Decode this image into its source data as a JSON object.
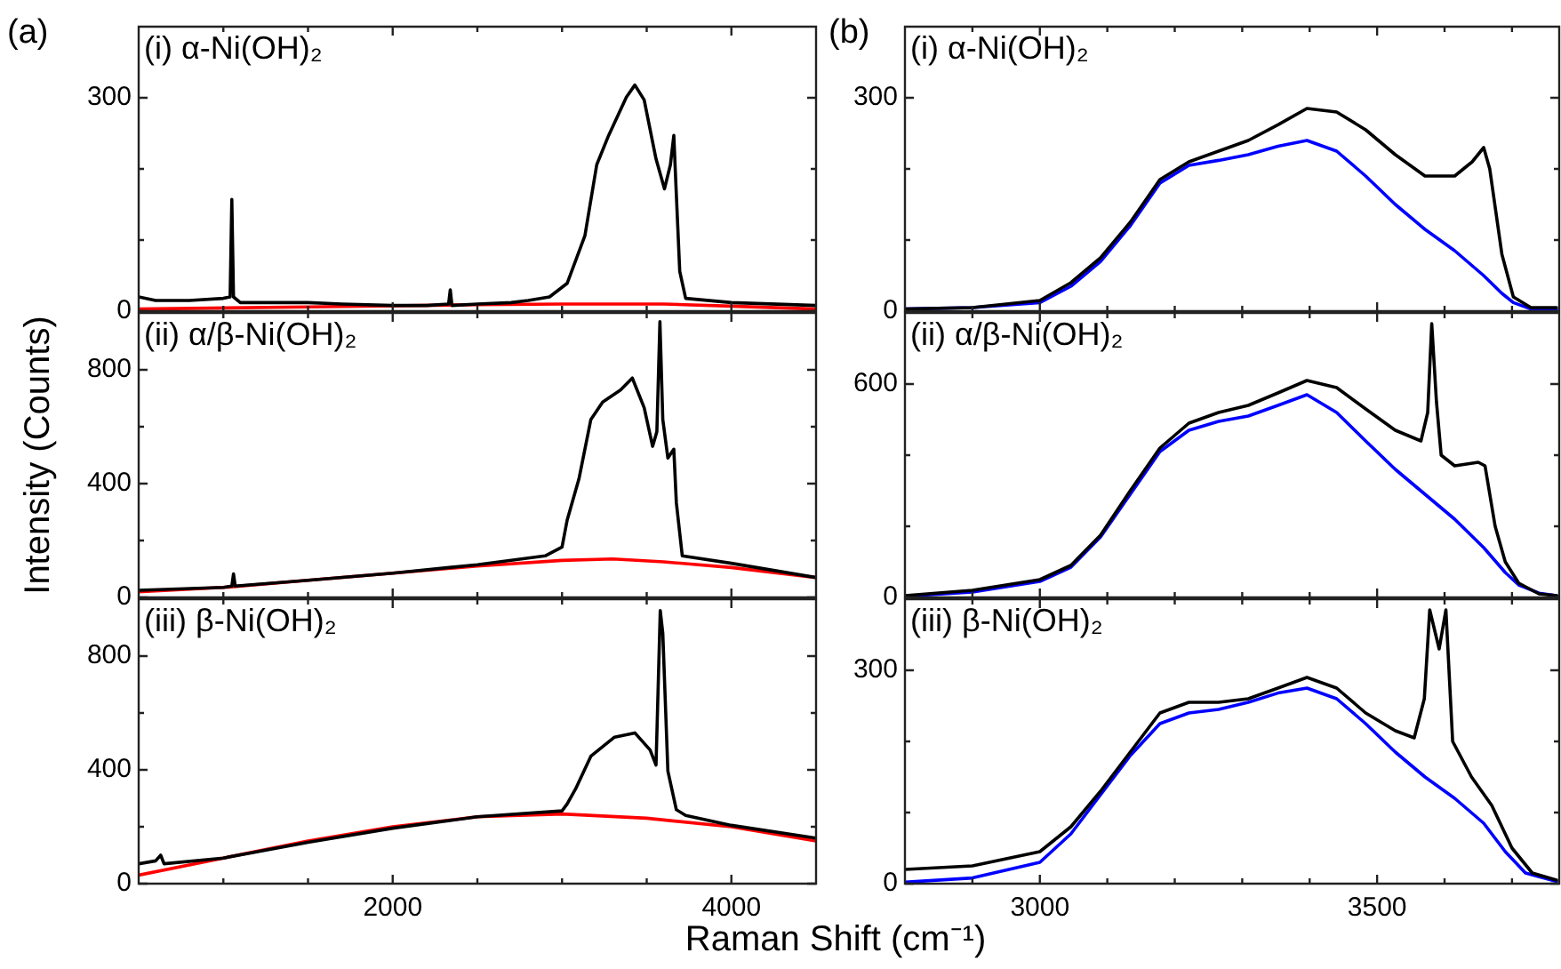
{
  "chart_data": [
    {
      "type": "line",
      "title": "(i) α-Ni(OH)₂",
      "annotations": [
        "(a)"
      ],
      "tick_labels": "y",
      "xlim": [
        500,
        4500
      ],
      "xticks": [
        {
          "value": 1000,
          "label": null
        },
        {
          "value": 1500,
          "label": null
        },
        2000,
        {
          "value": 2500,
          "label": null
        },
        {
          "value": 3000,
          "label": null
        },
        {
          "value": 3500,
          "label": null
        },
        4000
      ],
      "ylim": [
        0,
        400
      ],
      "yticks": [
        0,
        {
          "value": 100,
          "label": null
        },
        {
          "value": 200,
          "label": null
        },
        300
      ],
      "series": [
        {
          "color": "#000000",
          "x": [
            500,
            600,
            800,
            1000,
            1040,
            1050,
            1060,
            1100,
            1300,
            1500,
            1700,
            2000,
            2200,
            2330,
            2340,
            2350,
            2500,
            2700,
            2800,
            2926,
            3030,
            3135,
            3205,
            3275,
            3380,
            3430,
            3485,
            3555,
            3605,
            3640,
            3660,
            3675,
            3695,
            3730,
            4000,
            4500
          ],
          "values": [
            20,
            15,
            15,
            18,
            20,
            157,
            20,
            12,
            12,
            12,
            10,
            8,
            8,
            10,
            30,
            8,
            10,
            12,
            15,
            20,
            39,
            106,
            206,
            247,
            301,
            318,
            297,
            214,
            172,
            206,
            247,
            164,
            56,
            18,
            12,
            8
          ]
        },
        {
          "color": "#ff0000",
          "x": [
            500,
            1500,
            2500,
            3000,
            3600,
            4000,
            4500
          ],
          "values": [
            3,
            6,
            9,
            10,
            10,
            7,
            3
          ]
        }
      ]
    },
    {
      "type": "line",
      "title": "(ii) α/β-Ni(OH)₂",
      "ylabel": "Intensity (Counts)",
      "tick_labels": "y",
      "xlim": [
        500,
        4500
      ],
      "xticks": [
        {
          "value": 1000,
          "label": null
        },
        {
          "value": 1500,
          "label": null
        },
        2000,
        {
          "value": 2500,
          "label": null
        },
        {
          "value": 3000,
          "label": null
        },
        {
          "value": 3500,
          "label": null
        },
        4000
      ],
      "ylim": [
        0,
        1000
      ],
      "yticks": [
        0,
        {
          "value": 200,
          "label": null
        },
        400,
        {
          "value": 600,
          "label": null
        },
        800
      ],
      "series": [
        {
          "color": "#000000",
          "x": [
            500,
            1000,
            1050,
            1060,
            1070,
            1500,
            2000,
            2500,
            2900,
            3000,
            3030,
            3100,
            3170,
            3240,
            3345,
            3415,
            3485,
            3535,
            3560,
            3578,
            3595,
            3625,
            3660,
            3675,
            3710,
            4000,
            4500
          ],
          "values": [
            25,
            35,
            40,
            83,
            40,
            60,
            85,
            115,
            146,
            177,
            271,
            417,
            625,
            687,
            729,
            771,
            667,
            531,
            583,
            969,
            625,
            490,
            521,
            333,
            146,
            120,
            70
          ]
        },
        {
          "color": "#ff0000",
          "x": [
            500,
            1000,
            1500,
            2000,
            2500,
            3000,
            3300,
            3600,
            4000,
            4500
          ],
          "values": [
            20,
            35,
            60,
            85,
            110,
            130,
            135,
            125,
            105,
            70
          ]
        }
      ]
    },
    {
      "type": "line",
      "title": "(iii) β-Ni(OH)₂",
      "xlabel": "Raman Shift (cm⁻¹)",
      "xlim": [
        500,
        4500
      ],
      "xticks": [
        {
          "value": 1000,
          "label": null
        },
        {
          "value": 1500,
          "label": null
        },
        2000,
        {
          "value": 2500,
          "label": null
        },
        {
          "value": 3000,
          "label": null
        },
        {
          "value": 3500,
          "label": null
        },
        4000
      ],
      "ylim": [
        0,
        1000
      ],
      "yticks": [
        0,
        {
          "value": 200,
          "label": null
        },
        400,
        {
          "value": 600,
          "label": null
        },
        800
      ],
      "series": [
        {
          "color": "#000000",
          "x": [
            500,
            600,
            630,
            650,
            1000,
            1500,
            2000,
            2500,
            3000,
            3030,
            3080,
            3170,
            3310,
            3430,
            3520,
            3555,
            3580,
            3595,
            3625,
            3675,
            3730,
            4000,
            4500
          ],
          "values": [
            70,
            80,
            100,
            70,
            90,
            145,
            195,
            235,
            256,
            280,
            333,
            448,
            515,
            530,
            470,
            417,
            960,
            880,
            396,
            260,
            240,
            205,
            160
          ]
        },
        {
          "color": "#ff0000",
          "x": [
            500,
            1000,
            1500,
            2000,
            2500,
            3000,
            3500,
            4000,
            4500
          ],
          "values": [
            30,
            90,
            150,
            200,
            235,
            245,
            230,
            200,
            150
          ]
        }
      ]
    },
    {
      "type": "line",
      "title": "(i) α-Ni(OH)₂",
      "annotations": [
        "(b)"
      ],
      "tick_labels": "y",
      "xlim": [
        2800,
        3770
      ],
      "xticks": [
        {
          "value": 2900,
          "label": null
        },
        3000,
        {
          "value": 3100,
          "label": null
        },
        {
          "value": 3200,
          "label": null
        },
        {
          "value": 3300,
          "label": null
        },
        {
          "value": 3400,
          "label": null
        },
        3500,
        {
          "value": 3600,
          "label": null
        },
        {
          "value": 3700,
          "label": null
        }
      ],
      "ylim": [
        0,
        400
      ],
      "yticks": [
        0,
        {
          "value": 100,
          "label": null
        },
        {
          "value": 200,
          "label": null
        },
        300
      ],
      "series": [
        {
          "color": "#000000",
          "x": [
            2800,
            2900,
            3000,
            3046,
            3090,
            3134,
            3178,
            3221,
            3265,
            3309,
            3353,
            3396,
            3440,
            3483,
            3527,
            3571,
            3615,
            3641,
            3658,
            3667,
            3685,
            3702,
            3728,
            3766
          ],
          "values": [
            3,
            5,
            15,
            40,
            75,
            125,
            185,
            210,
            225,
            240,
            262,
            285,
            280,
            255,
            220,
            190,
            190,
            210,
            230,
            200,
            80,
            20,
            5,
            5
          ]
        },
        {
          "color": "#0000ff",
          "x": [
            2800,
            2900,
            3000,
            3046,
            3090,
            3134,
            3178,
            3221,
            3265,
            3309,
            3353,
            3396,
            3440,
            3483,
            3527,
            3571,
            3615,
            3658,
            3685,
            3702,
            3728,
            3766
          ],
          "values": [
            3,
            5,
            12,
            35,
            70,
            120,
            180,
            205,
            212,
            220,
            232,
            240,
            225,
            190,
            150,
            115,
            85,
            50,
            25,
            12,
            3,
            2
          ]
        }
      ]
    },
    {
      "type": "line",
      "title": "(ii) α/β-Ni(OH)₂",
      "tick_labels": "y",
      "xlim": [
        2800,
        3770
      ],
      "xticks": [
        {
          "value": 2900,
          "label": null
        },
        3000,
        {
          "value": 3100,
          "label": null
        },
        {
          "value": 3200,
          "label": null
        },
        {
          "value": 3300,
          "label": null
        },
        {
          "value": 3400,
          "label": null
        },
        3500,
        {
          "value": 3600,
          "label": null
        },
        {
          "value": 3700,
          "label": null
        }
      ],
      "ylim": [
        0,
        800
      ],
      "yticks": [
        0,
        {
          "value": 200,
          "label": null
        },
        {
          "value": 400,
          "label": null
        },
        600
      ],
      "series": [
        {
          "color": "#000000",
          "x": [
            2800,
            2900,
            3000,
            3046,
            3090,
            3134,
            3178,
            3221,
            3265,
            3309,
            3353,
            3396,
            3440,
            3483,
            3527,
            3565,
            3575,
            3581,
            3588,
            3595,
            3615,
            3650,
            3660,
            3675,
            3690,
            3710,
            3740,
            3766
          ],
          "values": [
            5,
            20,
            50,
            90,
            175,
            300,
            420,
            490,
            520,
            540,
            575,
            610,
            590,
            530,
            470,
            440,
            520,
            770,
            550,
            400,
            370,
            380,
            370,
            200,
            100,
            40,
            10,
            5
          ]
        },
        {
          "color": "#0000ff",
          "x": [
            2800,
            2900,
            3000,
            3046,
            3090,
            3134,
            3178,
            3221,
            3265,
            3309,
            3353,
            3396,
            3440,
            3483,
            3527,
            3571,
            3615,
            3658,
            3690,
            3710,
            3740,
            3766
          ],
          "values": [
            3,
            15,
            45,
            85,
            170,
            290,
            410,
            470,
            495,
            510,
            540,
            570,
            520,
            440,
            360,
            290,
            220,
            140,
            70,
            35,
            12,
            5
          ]
        }
      ]
    },
    {
      "type": "line",
      "title": "(iii) β-Ni(OH)₂",
      "xlim": [
        2800,
        3770
      ],
      "xticks": [
        {
          "value": 2900,
          "label": null
        },
        3000,
        {
          "value": 3100,
          "label": null
        },
        {
          "value": 3200,
          "label": null
        },
        {
          "value": 3300,
          "label": null
        },
        {
          "value": 3400,
          "label": null
        },
        3500,
        {
          "value": 3600,
          "label": null
        },
        {
          "value": 3700,
          "label": null
        }
      ],
      "ylim": [
        0,
        400
      ],
      "yticks": [
        0,
        {
          "value": 100,
          "label": null
        },
        {
          "value": 200,
          "label": null
        },
        300
      ],
      "series": [
        {
          "color": "#000000",
          "x": [
            2800,
            2900,
            3000,
            3046,
            3090,
            3134,
            3178,
            3221,
            3265,
            3309,
            3353,
            3396,
            3440,
            3483,
            3527,
            3555,
            3570,
            3578,
            3592,
            3602,
            3612,
            3640,
            3670,
            3700,
            3730,
            3766
          ],
          "values": [
            20,
            25,
            45,
            80,
            130,
            185,
            240,
            255,
            255,
            260,
            275,
            290,
            275,
            240,
            215,
            205,
            260,
            385,
            330,
            385,
            200,
            150,
            110,
            50,
            15,
            5
          ]
        },
        {
          "color": "#0000ff",
          "x": [
            2800,
            2900,
            3000,
            3046,
            3090,
            3134,
            3178,
            3221,
            3265,
            3309,
            3353,
            3396,
            3440,
            3483,
            3527,
            3571,
            3615,
            3658,
            3690,
            3720,
            3766
          ],
          "values": [
            2,
            8,
            30,
            70,
            125,
            180,
            225,
            240,
            245,
            255,
            268,
            275,
            260,
            225,
            185,
            150,
            120,
            85,
            45,
            15,
            3
          ]
        }
      ]
    }
  ]
}
